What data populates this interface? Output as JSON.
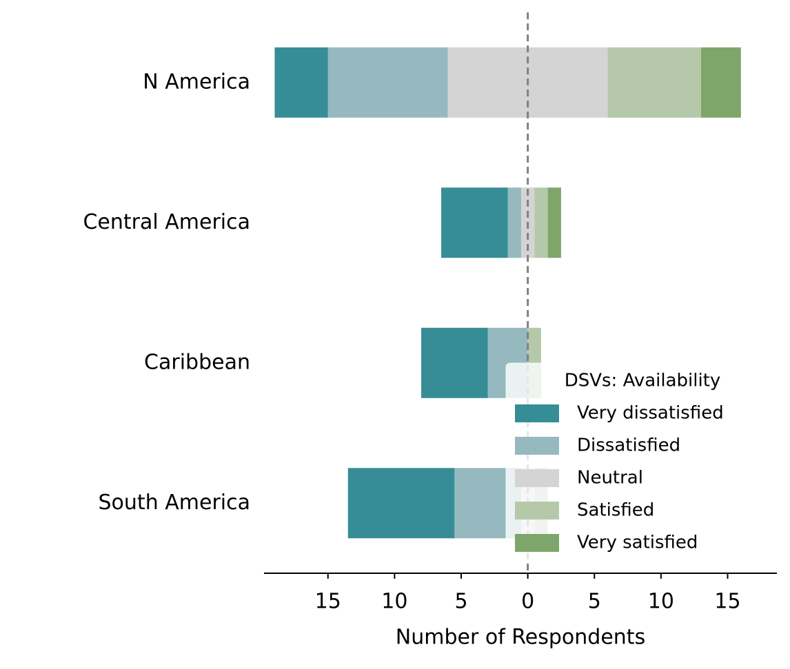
{
  "chart_data": {
    "type": "diverging_bar",
    "xlabel": "Number of Respondents",
    "categories": [
      "N America",
      "Central America",
      "Caribbean",
      "South America"
    ],
    "series": [
      {
        "name": "Very dissatisfied",
        "color": "#368d96",
        "values": [
          4,
          5,
          5,
          8
        ]
      },
      {
        "name": "Dissatisfied",
        "color": "#96b9c0",
        "values": [
          9,
          1,
          3,
          5
        ]
      },
      {
        "name": "Neutral",
        "color": "#d4d4d4",
        "values": [
          12,
          1,
          0,
          1
        ]
      },
      {
        "name": "Satisfied",
        "color": "#b5c9aa",
        "values": [
          7,
          1,
          1,
          1
        ]
      },
      {
        "name": "Very satisfied",
        "color": "#7ea66b",
        "values": [
          3,
          1,
          0,
          0
        ]
      }
    ],
    "xlim": [
      -19.8,
      18.7
    ],
    "xticks": [
      {
        "value": -15,
        "label": "15"
      },
      {
        "value": -10,
        "label": "10"
      },
      {
        "value": -5,
        "label": "5"
      },
      0,
      5,
      10,
      15
    ],
    "legend_title": "DSVs: Availability",
    "legend": "lower right"
  }
}
